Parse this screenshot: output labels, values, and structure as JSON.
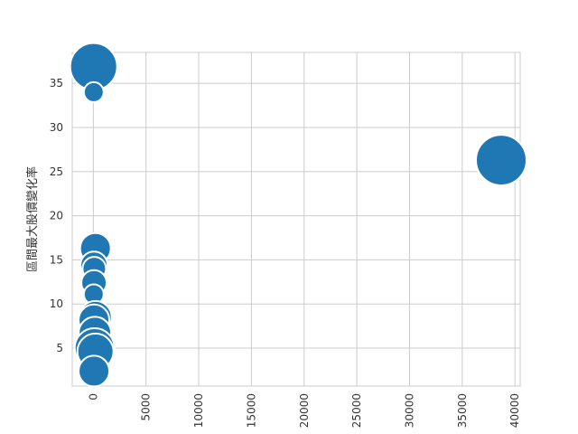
{
  "chart_data": {
    "type": "scatter",
    "title": "",
    "xlabel": "",
    "ylabel": "區間最大股價變化率",
    "xlim": [
      -2000,
      40500
    ],
    "ylim": [
      0.7,
      38.5
    ],
    "xticks": [
      0,
      5000,
      10000,
      15000,
      20000,
      25000,
      30000,
      35000,
      40000
    ],
    "xtick_labels": [
      "0",
      "5000",
      "10000",
      "15000",
      "20000",
      "25000",
      "30000",
      "35000",
      "40000"
    ],
    "yticks": [
      5,
      10,
      15,
      20,
      25,
      30,
      35
    ],
    "ytick_labels": [
      "5",
      "10",
      "15",
      "20",
      "25",
      "30",
      "35"
    ],
    "grid": true,
    "marker_color": "#1f77b4",
    "marker_edge_color": "#ffffff",
    "points": [
      {
        "x": 38700,
        "y": 26.3,
        "size": 28
      },
      {
        "x": 30,
        "y": 36.9,
        "size": 26
      },
      {
        "x": 40,
        "y": 34.0,
        "size": 11
      },
      {
        "x": 200,
        "y": 16.3,
        "size": 17
      },
      {
        "x": 60,
        "y": 14.4,
        "size": 15
      },
      {
        "x": 90,
        "y": 14.0,
        "size": 13
      },
      {
        "x": 60,
        "y": 12.4,
        "size": 14
      },
      {
        "x": 40,
        "y": 11.1,
        "size": 11
      },
      {
        "x": 200,
        "y": 8.5,
        "size": 18
      },
      {
        "x": 60,
        "y": 8.2,
        "size": 17
      },
      {
        "x": 150,
        "y": 6.7,
        "size": 18
      },
      {
        "x": 120,
        "y": 5.0,
        "size": 22
      },
      {
        "x": 200,
        "y": 4.6,
        "size": 20
      },
      {
        "x": 60,
        "y": 2.4,
        "size": 17
      }
    ]
  }
}
